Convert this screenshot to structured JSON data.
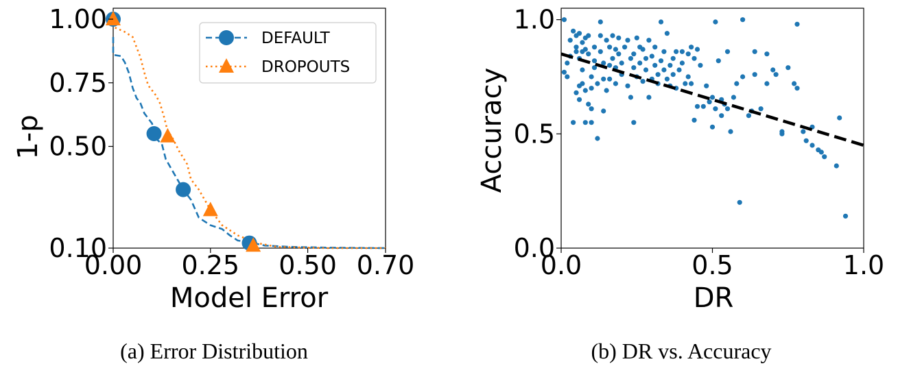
{
  "chart_data": [
    {
      "type": "line",
      "xlabel": "Model Error",
      "ylabel": "1-p",
      "caption": "(a) Error Distribution",
      "xlim": [
        0,
        0.7
      ],
      "ylim": [
        0.1,
        1.0
      ],
      "xticks": [
        0.0,
        0.25,
        0.5,
        0.7
      ],
      "xtick_labels": [
        "0.00",
        "0.25",
        "0.50",
        "0.70"
      ],
      "yticks": [
        0.1,
        0.5,
        0.75,
        1.0
      ],
      "ytick_labels": [
        "0.10",
        "0.50",
        "0.75",
        "1.00"
      ],
      "legend": "top-right",
      "grid": false,
      "series": [
        {
          "name": "DEFAULT",
          "color": "#1f77b4",
          "linestyle": "dashed",
          "marker": "circle",
          "line": [
            [
              0.0,
              0.93
            ],
            [
              0.0,
              0.86
            ],
            [
              0.02,
              0.855
            ],
            [
              0.03,
              0.83
            ],
            [
              0.04,
              0.79
            ],
            [
              0.05,
              0.73
            ],
            [
              0.06,
              0.69
            ],
            [
              0.07,
              0.67
            ],
            [
              0.08,
              0.63
            ],
            [
              0.09,
              0.61
            ],
            [
              0.1,
              0.59
            ],
            [
              0.105,
              0.55
            ],
            [
              0.11,
              0.53
            ],
            [
              0.125,
              0.51
            ],
            [
              0.135,
              0.45
            ],
            [
              0.15,
              0.41
            ],
            [
              0.165,
              0.37
            ],
            [
              0.18,
              0.33
            ],
            [
              0.2,
              0.29
            ],
            [
              0.22,
              0.22
            ],
            [
              0.25,
              0.19
            ],
            [
              0.28,
              0.175
            ],
            [
              0.3,
              0.15
            ],
            [
              0.32,
              0.13
            ],
            [
              0.36,
              0.12
            ],
            [
              0.39,
              0.11
            ],
            [
              0.45,
              0.105
            ],
            [
              0.55,
              0.102
            ],
            [
              0.7,
              0.1
            ]
          ],
          "markers": [
            [
              0.0,
              1.0
            ],
            [
              0.105,
              0.55
            ],
            [
              0.18,
              0.33
            ],
            [
              0.35,
              0.12
            ]
          ]
        },
        {
          "name": "DROPOUTS",
          "color": "#ff7f0e",
          "linestyle": "dotted",
          "marker": "triangle",
          "line": [
            [
              0.0,
              1.0
            ],
            [
              0.0,
              0.97
            ],
            [
              0.03,
              0.95
            ],
            [
              0.05,
              0.93
            ],
            [
              0.06,
              0.89
            ],
            [
              0.07,
              0.85
            ],
            [
              0.08,
              0.79
            ],
            [
              0.09,
              0.74
            ],
            [
              0.11,
              0.7
            ],
            [
              0.12,
              0.67
            ],
            [
              0.13,
              0.62
            ],
            [
              0.14,
              0.56
            ],
            [
              0.15,
              0.54
            ],
            [
              0.17,
              0.48
            ],
            [
              0.19,
              0.43
            ],
            [
              0.2,
              0.37
            ],
            [
              0.22,
              0.33
            ],
            [
              0.25,
              0.25
            ],
            [
              0.28,
              0.19
            ],
            [
              0.32,
              0.15
            ],
            [
              0.37,
              0.12
            ],
            [
              0.42,
              0.105
            ],
            [
              0.55,
              0.1
            ],
            [
              0.7,
              0.1
            ]
          ],
          "markers": [
            [
              0.0,
              1.0
            ],
            [
              0.14,
              0.54
            ],
            [
              0.25,
              0.25
            ],
            [
              0.36,
              0.11
            ]
          ]
        }
      ]
    },
    {
      "type": "scatter",
      "xlabel": "DR",
      "ylabel": "Accuracy",
      "caption": "(b) DR vs. Accuracy",
      "xlim": [
        0,
        1.0
      ],
      "ylim": [
        0.0,
        1.05
      ],
      "xticks": [
        0.0,
        0.5,
        1.0
      ],
      "xtick_labels": [
        "0.0",
        "0.5",
        "1.0"
      ],
      "yticks": [
        0.0,
        0.5,
        1.0
      ],
      "ytick_labels": [
        "0.0",
        "0.5",
        "1.0"
      ],
      "grid": false,
      "color": "#1f77b4",
      "trend_line": {
        "color": "#000000",
        "linestyle": "dashed",
        "from": [
          0.0,
          0.85
        ],
        "to": [
          1.0,
          0.45
        ]
      },
      "points": [
        [
          0.01,
          1.0
        ],
        [
          0.01,
          0.77
        ],
        [
          0.02,
          0.81
        ],
        [
          0.02,
          0.75
        ],
        [
          0.03,
          0.84
        ],
        [
          0.03,
          0.91
        ],
        [
          0.04,
          0.95
        ],
        [
          0.04,
          0.55
        ],
        [
          0.05,
          0.88
        ],
        [
          0.05,
          0.86
        ],
        [
          0.05,
          0.93
        ],
        [
          0.05,
          0.68
        ],
        [
          0.06,
          0.94
        ],
        [
          0.06,
          0.83
        ],
        [
          0.06,
          0.71
        ],
        [
          0.06,
          0.65
        ],
        [
          0.07,
          0.78
        ],
        [
          0.07,
          0.72
        ],
        [
          0.07,
          0.86
        ],
        [
          0.07,
          0.9
        ],
        [
          0.08,
          0.92
        ],
        [
          0.08,
          0.87
        ],
        [
          0.08,
          0.69
        ],
        [
          0.08,
          0.55
        ],
        [
          0.09,
          0.85
        ],
        [
          0.09,
          0.63
        ],
        [
          0.09,
          0.93
        ],
        [
          0.1,
          0.75
        ],
        [
          0.1,
          0.7
        ],
        [
          0.1,
          0.61
        ],
        [
          0.1,
          0.55
        ],
        [
          0.11,
          0.88
        ],
        [
          0.11,
          0.82
        ],
        [
          0.11,
          0.79
        ],
        [
          0.12,
          0.72
        ],
        [
          0.12,
          0.48
        ],
        [
          0.13,
          0.99
        ],
        [
          0.13,
          0.93
        ],
        [
          0.13,
          0.86
        ],
        [
          0.14,
          0.81
        ],
        [
          0.14,
          0.74
        ],
        [
          0.14,
          0.6
        ],
        [
          0.15,
          0.91
        ],
        [
          0.15,
          0.69
        ],
        [
          0.16,
          0.88
        ],
        [
          0.16,
          0.8
        ],
        [
          0.16,
          0.74
        ],
        [
          0.17,
          0.93
        ],
        [
          0.17,
          0.83
        ],
        [
          0.18,
          0.87
        ],
        [
          0.18,
          0.79
        ],
        [
          0.18,
          0.72
        ],
        [
          0.19,
          0.92
        ],
        [
          0.19,
          0.85
        ],
        [
          0.2,
          0.76
        ],
        [
          0.2,
          0.81
        ],
        [
          0.21,
          0.88
        ],
        [
          0.22,
          0.91
        ],
        [
          0.22,
          0.71
        ],
        [
          0.23,
          0.83
        ],
        [
          0.23,
          0.66
        ],
        [
          0.24,
          0.85
        ],
        [
          0.24,
          0.79
        ],
        [
          0.24,
          0.55
        ],
        [
          0.25,
          0.75
        ],
        [
          0.25,
          0.92
        ],
        [
          0.26,
          0.88
        ],
        [
          0.26,
          0.81
        ],
        [
          0.27,
          0.87
        ],
        [
          0.27,
          0.73
        ],
        [
          0.28,
          0.78
        ],
        [
          0.28,
          0.83
        ],
        [
          0.29,
          0.91
        ],
        [
          0.29,
          0.66
        ],
        [
          0.3,
          0.84
        ],
        [
          0.3,
          0.74
        ],
        [
          0.31,
          0.8
        ],
        [
          0.31,
          0.88
        ],
        [
          0.32,
          0.76
        ],
        [
          0.32,
          0.72
        ],
        [
          0.33,
          0.82
        ],
        [
          0.33,
          0.99
        ],
        [
          0.34,
          0.86
        ],
        [
          0.34,
          0.78
        ],
        [
          0.35,
          0.74
        ],
        [
          0.35,
          0.94
        ],
        [
          0.36,
          0.8
        ],
        [
          0.36,
          0.71
        ],
        [
          0.37,
          0.83
        ],
        [
          0.37,
          0.76
        ],
        [
          0.38,
          0.86
        ],
        [
          0.38,
          0.7
        ],
        [
          0.39,
          0.78
        ],
        [
          0.4,
          0.81
        ],
        [
          0.4,
          0.86
        ],
        [
          0.41,
          0.72
        ],
        [
          0.42,
          0.75
        ],
        [
          0.42,
          0.85
        ],
        [
          0.43,
          0.88
        ],
        [
          0.43,
          0.72
        ],
        [
          0.44,
          0.56
        ],
        [
          0.44,
          0.83
        ],
        [
          0.45,
          0.62
        ],
        [
          0.45,
          0.87
        ],
        [
          0.46,
          0.8
        ],
        [
          0.47,
          0.62
        ],
        [
          0.48,
          0.71
        ],
        [
          0.49,
          0.64
        ],
        [
          0.5,
          0.53
        ],
        [
          0.5,
          0.66
        ],
        [
          0.51,
          0.99
        ],
        [
          0.51,
          0.61
        ],
        [
          0.52,
          0.82
        ],
        [
          0.53,
          0.58
        ],
        [
          0.53,
          0.65
        ],
        [
          0.54,
          0.63
        ],
        [
          0.55,
          0.86
        ],
        [
          0.55,
          0.61
        ],
        [
          0.56,
          0.51
        ],
        [
          0.57,
          0.66
        ],
        [
          0.58,
          0.72
        ],
        [
          0.59,
          0.2
        ],
        [
          0.6,
          0.75
        ],
        [
          0.6,
          1.0
        ],
        [
          0.62,
          0.58
        ],
        [
          0.63,
          0.6
        ],
        [
          0.64,
          0.86
        ],
        [
          0.64,
          0.76
        ],
        [
          0.66,
          0.61
        ],
        [
          0.68,
          0.72
        ],
        [
          0.68,
          0.85
        ],
        [
          0.7,
          0.78
        ],
        [
          0.71,
          0.76
        ],
        [
          0.73,
          0.51
        ],
        [
          0.73,
          0.5
        ],
        [
          0.75,
          0.79
        ],
        [
          0.77,
          0.72
        ],
        [
          0.78,
          0.98
        ],
        [
          0.78,
          0.7
        ],
        [
          0.8,
          0.51
        ],
        [
          0.81,
          0.47
        ],
        [
          0.83,
          0.53
        ],
        [
          0.83,
          0.45
        ],
        [
          0.85,
          0.43
        ],
        [
          0.86,
          0.42
        ],
        [
          0.87,
          0.4
        ],
        [
          0.91,
          0.36
        ],
        [
          0.92,
          0.57
        ],
        [
          0.94,
          0.14
        ]
      ]
    }
  ]
}
